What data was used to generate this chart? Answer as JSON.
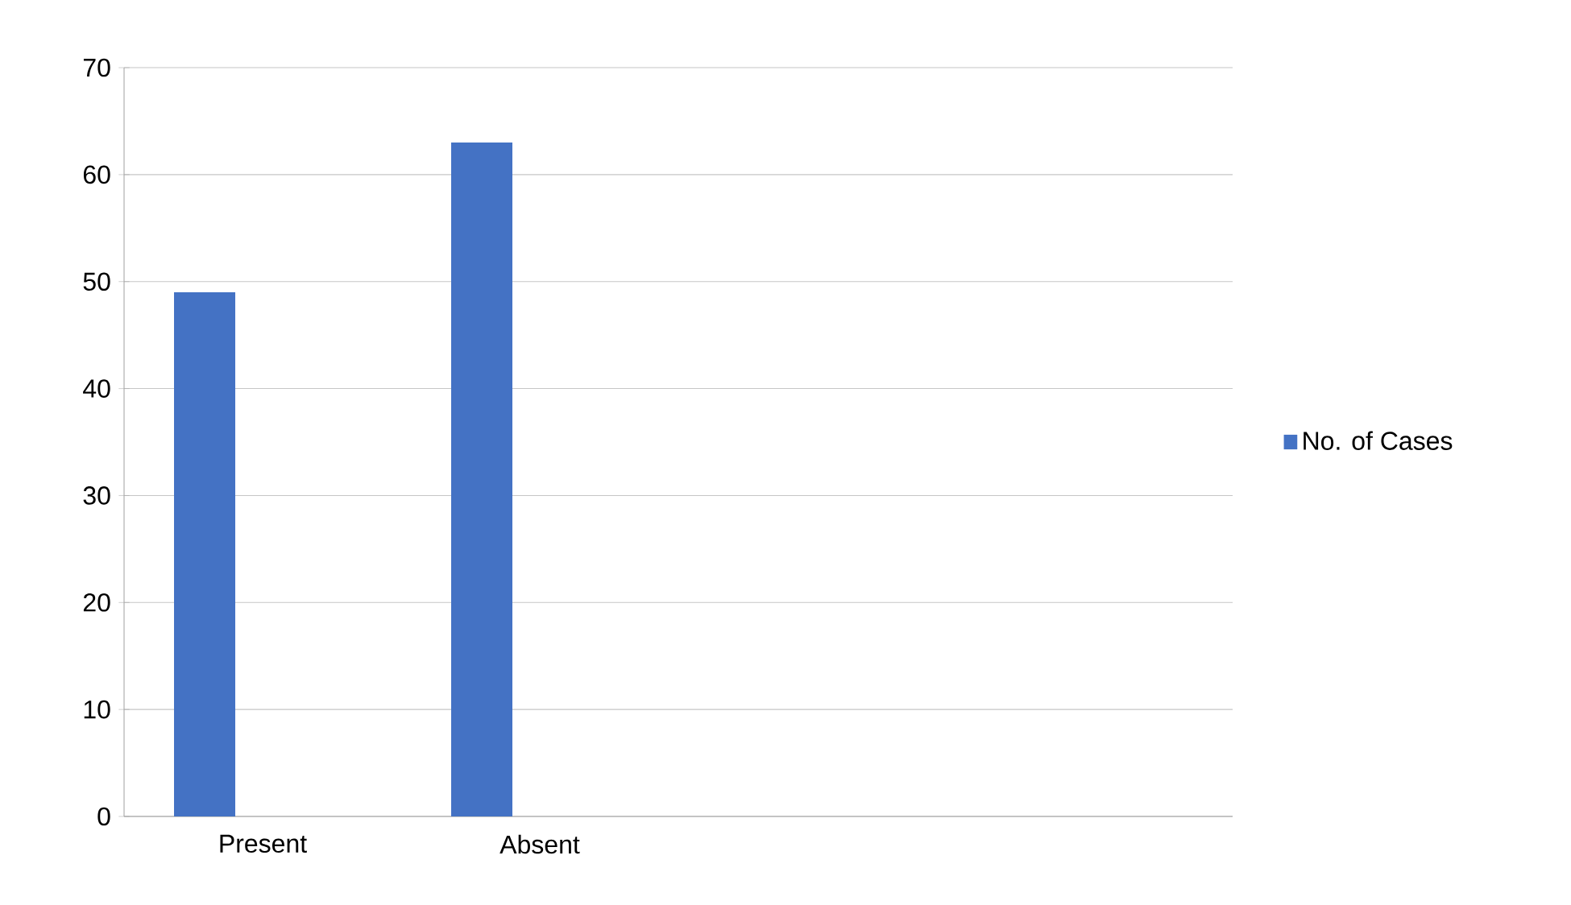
{
  "chart_data": {
    "type": "bar",
    "categories": [
      "Present",
      "Absent",
      null,
      null
    ],
    "series": [
      {
        "name": "No. of Cases",
        "color": "#4472c4",
        "values": [
          49,
          63,
          null,
          null
        ]
      }
    ],
    "ylim": [
      0,
      70
    ],
    "yticks": [
      0,
      10,
      20,
      30,
      40,
      50,
      60,
      70
    ],
    "grid": "y",
    "legend": "right"
  }
}
